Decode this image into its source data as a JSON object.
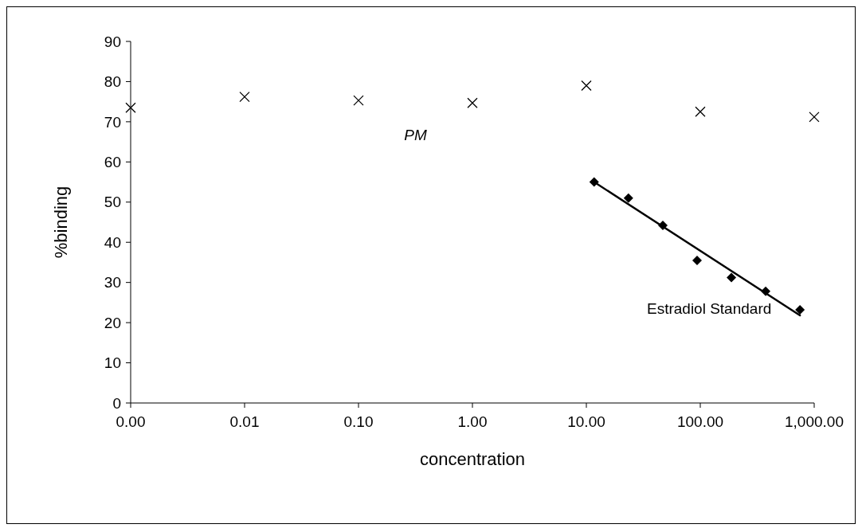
{
  "chart_data": {
    "type": "scatter",
    "xlabel": "concentration",
    "ylabel": "%binding",
    "log": "x",
    "grid": false,
    "xlim": [
      0.001,
      1000
    ],
    "xticks": [
      {
        "value": 0.001,
        "label": "0.00"
      },
      {
        "value": 0.01,
        "label": "0.01"
      },
      {
        "value": 0.1,
        "label": "0.10"
      },
      {
        "value": 1,
        "label": "1.00"
      },
      {
        "value": 10,
        "label": "10.00"
      },
      {
        "value": 100,
        "label": "100.00"
      },
      {
        "value": 1000,
        "label": "1,000.00"
      }
    ],
    "ylim": [
      0,
      90
    ],
    "yticks": [
      0,
      10,
      20,
      30,
      40,
      50,
      60,
      70,
      80,
      90
    ],
    "series": [
      {
        "name": "PM",
        "color": "#000000",
        "marker": "cross",
        "x": [
          0.001,
          0.01,
          0.1,
          1,
          10,
          100,
          1000
        ],
        "values": [
          73.5,
          76.2,
          75.3,
          74.7,
          79,
          72.5,
          71.2
        ]
      },
      {
        "name": "Estradiol Standard",
        "color": "#000000",
        "marker": "diamond",
        "x": [
          11.7,
          23.4,
          46.9,
          93.8,
          187.5,
          375,
          750
        ],
        "values": [
          55,
          51,
          44.2,
          35.5,
          31.2,
          27.8,
          23.2
        ]
      },
      {
        "type": "line",
        "color": "#000000",
        "marker": "none",
        "line_style": "solid",
        "x": [
          11.7,
          750
        ],
        "values": [
          55,
          21.8
        ]
      }
    ]
  }
}
